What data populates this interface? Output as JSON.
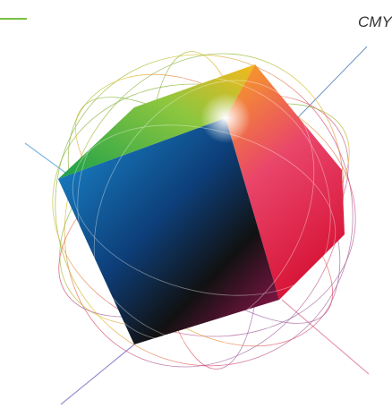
{
  "label": "CMY"
}
